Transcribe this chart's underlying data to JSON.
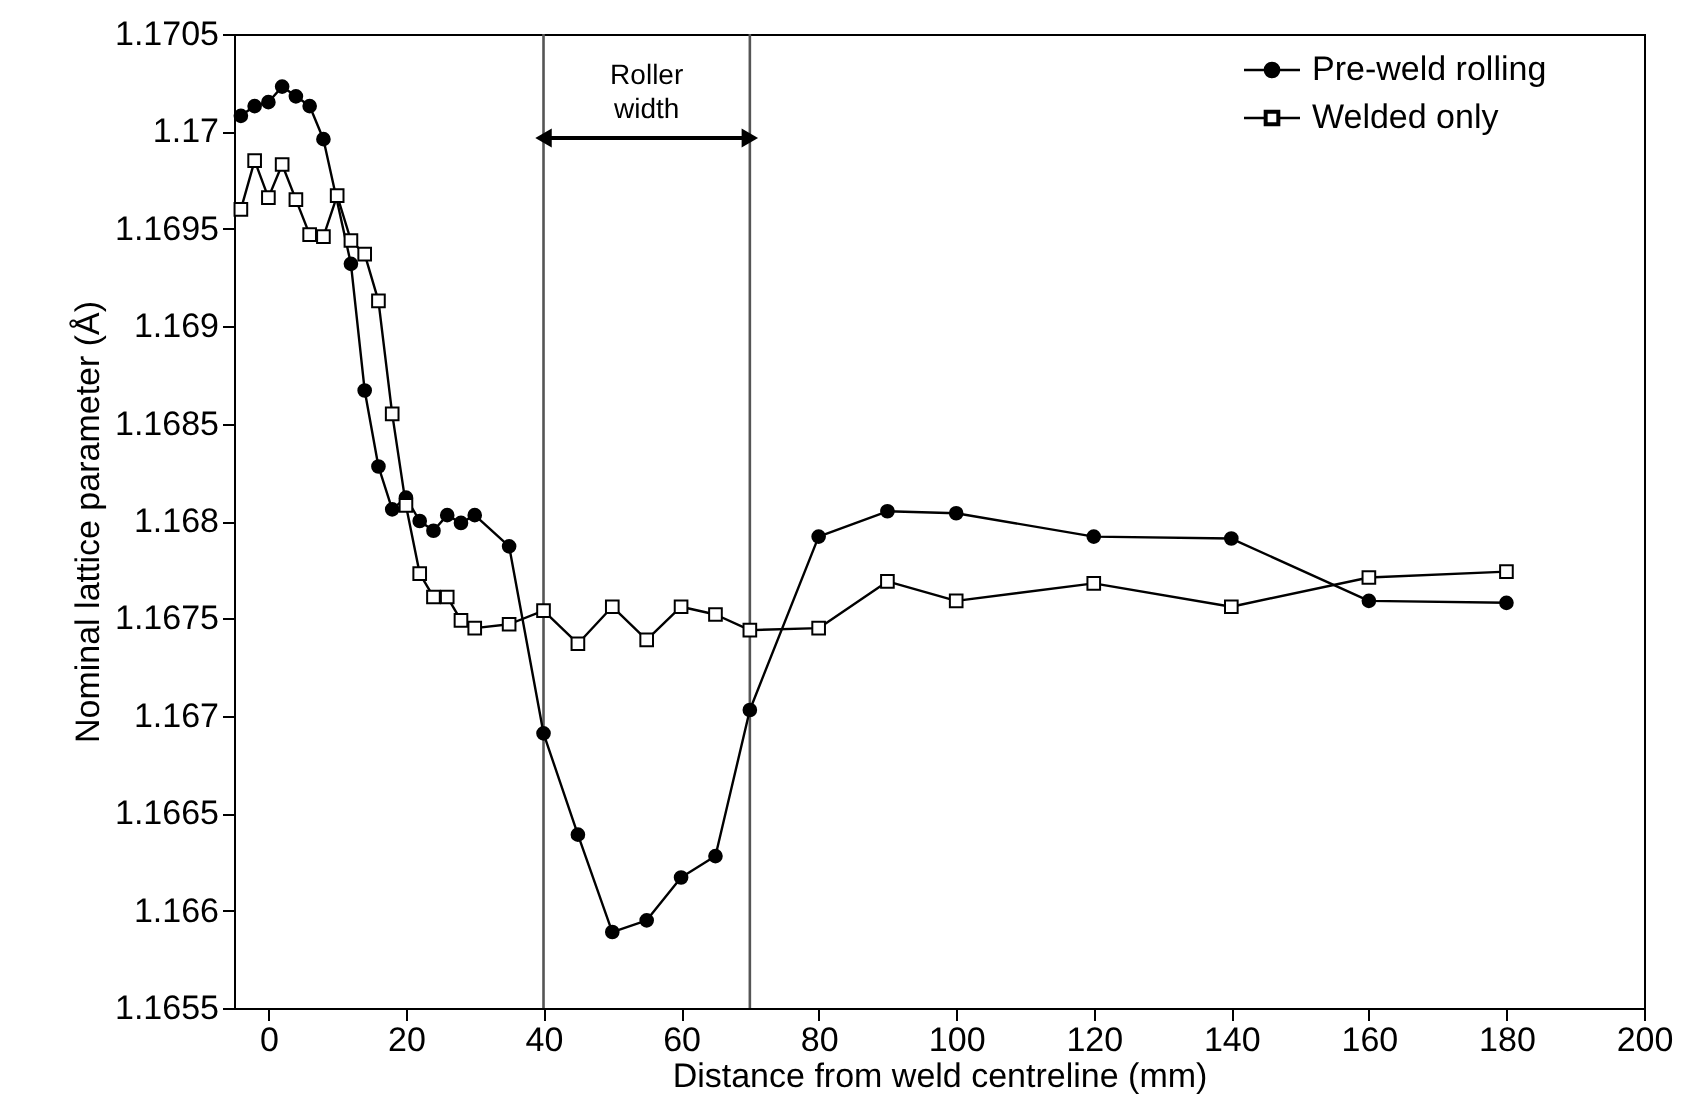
{
  "chart_data": {
    "type": "line",
    "xlabel": "Distance from weld centreline (mm)",
    "ylabel": "Nominal lattice parameter (Å)",
    "xlim": [
      -5,
      200
    ],
    "xticks": [
      0,
      20,
      40,
      60,
      80,
      100,
      120,
      140,
      160,
      180,
      200
    ],
    "ylim": [
      1.1655,
      1.1705
    ],
    "yticks": [
      1.1655,
      1.166,
      1.1665,
      1.167,
      1.1675,
      1.168,
      1.1685,
      1.169,
      1.1695,
      1.17,
      1.1705
    ],
    "grid": false,
    "legend": "top right",
    "line_style": "solid",
    "series": [
      {
        "name": "Pre-weld rolling",
        "color": "#000000",
        "marker": "circle",
        "x": [
          -4,
          -2,
          0,
          2,
          4,
          6,
          8,
          12,
          14,
          16,
          18,
          20,
          22,
          24,
          26,
          28,
          30,
          35,
          40,
          45,
          50,
          55,
          60,
          65,
          70,
          80,
          90,
          100,
          120,
          140,
          160,
          180
        ],
        "values": [
          1.17008,
          1.17013,
          1.17015,
          1.17023,
          1.17018,
          1.17013,
          1.16996,
          1.16932,
          1.16867,
          1.16828,
          1.16806,
          1.16812,
          1.168,
          1.16795,
          1.16803,
          1.16799,
          1.16803,
          1.16787,
          1.16691,
          1.16639,
          1.16589,
          1.16595,
          1.16617,
          1.16628,
          1.16703,
          1.16792,
          1.16805,
          1.16804,
          1.16792,
          1.16791,
          1.16759,
          1.16758
        ]
      },
      {
        "name": "Welded only",
        "color": "#000000",
        "marker": "square",
        "x": [
          -4,
          -2,
          0,
          2,
          4,
          6,
          8,
          10,
          12,
          14,
          16,
          18,
          20,
          22,
          24,
          26,
          28,
          30,
          35,
          40,
          45,
          50,
          55,
          60,
          65,
          70,
          80,
          90,
          100,
          120,
          140,
          160,
          180
        ],
        "values": [
          1.1696,
          1.16985,
          1.16966,
          1.16983,
          1.16965,
          1.16947,
          1.16946,
          1.16967,
          1.16944,
          1.16937,
          1.16913,
          1.16855,
          1.16808,
          1.16773,
          1.16761,
          1.16761,
          1.16749,
          1.16745,
          1.16747,
          1.16754,
          1.16737,
          1.16756,
          1.16739,
          1.16756,
          1.16752,
          1.16744,
          1.16745,
          1.16769,
          1.16759,
          1.16768,
          1.16756,
          1.16771,
          1.16774
        ]
      }
    ],
    "ref_lines": [
      {
        "axis": "x",
        "value": 40,
        "color": "#555555"
      },
      {
        "axis": "x",
        "value": 70,
        "color": "#555555"
      }
    ],
    "annotations": [
      "Roller width"
    ]
  }
}
